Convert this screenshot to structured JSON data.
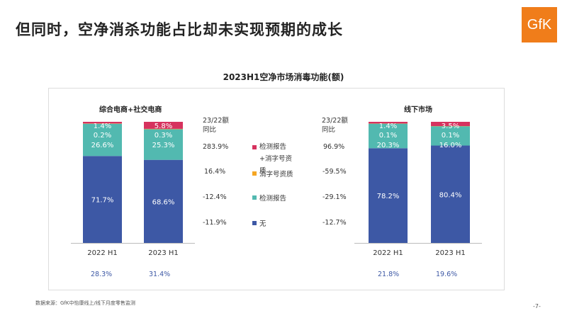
{
  "title": "但同时，空净消杀功能占比却未实现预期的成长",
  "logo": "GfK",
  "source": "数据来源：GfK中怡康线上/线下月度零售监测",
  "page_number": "-7-",
  "chart_data": {
    "type": "bar",
    "title": "2023H1空净市场消毒功能(额)",
    "stacked": true,
    "segments": [
      "无",
      "检测报告",
      "消字号资质",
      "检测报告+消字号资质"
    ],
    "colors": {
      "无": "#3d58a5",
      "检测报告": "#52b9b0",
      "消字号资质": "#f5a623",
      "检测报告+消字号资质": "#d6325e"
    },
    "legend": [
      {
        "label": "检测报告+消字号资质",
        "color": "#d6325e"
      },
      {
        "label": "消字号资质",
        "color": "#f5a623"
      },
      {
        "label": "检测报告",
        "color": "#52b9b0"
      },
      {
        "label": "无",
        "color": "#3d58a5"
      }
    ],
    "yoy_header": "23/22额同比",
    "panels": [
      {
        "name": "综合电商+社交电商",
        "categories": [
          "2022 H1",
          "2023 H1"
        ],
        "values": [
          [
            71.7,
            26.6,
            0.2,
            1.4
          ],
          [
            68.6,
            25.3,
            0.3,
            5.8
          ]
        ],
        "labels": [
          [
            "71.7%",
            "26.6%",
            "0.2%",
            "1.4%"
          ],
          [
            "68.6%",
            "25.3%",
            "0.3%",
            "5.8%"
          ]
        ],
        "share": [
          "28.3%",
          "31.4%"
        ],
        "yoy": [
          "283.9%",
          "16.4%",
          "-12.4%",
          "-11.9%"
        ]
      },
      {
        "name": "线下市场",
        "categories": [
          "2022 H1",
          "2023 H1"
        ],
        "values": [
          [
            78.2,
            20.3,
            0.1,
            1.4
          ],
          [
            80.4,
            16.0,
            0.1,
            3.5
          ]
        ],
        "labels": [
          [
            "78.2%",
            "20.3%",
            "0.1%",
            "1.4%"
          ],
          [
            "80.4%",
            "16.0%",
            "0.1%",
            "3.5%"
          ]
        ],
        "share": [
          "21.8%",
          "19.6%"
        ],
        "yoy": [
          "96.9%",
          "-59.5%",
          "-29.1%",
          "-12.7%"
        ]
      }
    ]
  }
}
